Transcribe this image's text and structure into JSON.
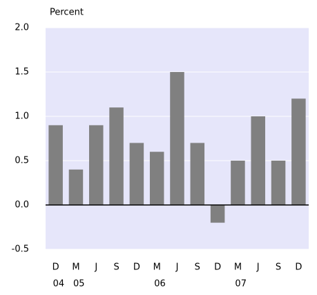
{
  "chart_data": {
    "type": "bar",
    "y_label": "Percent",
    "categories": [
      "D",
      "M",
      "J",
      "S",
      "D",
      "M",
      "J",
      "S",
      "D",
      "M",
      "J",
      "S",
      "D"
    ],
    "category_years": [
      "04",
      "05",
      null,
      null,
      null,
      "06",
      null,
      null,
      null,
      "07",
      null,
      null,
      null
    ],
    "values": [
      0.9,
      0.4,
      0.9,
      1.1,
      0.7,
      0.6,
      1.5,
      0.7,
      -0.2,
      0.5,
      1.0,
      0.5,
      1.2
    ],
    "color": "#808080",
    "ylim": [
      -0.5,
      2.0
    ],
    "yticks": [
      {
        "value": -0.5,
        "label": "-0.5"
      },
      {
        "value": 0,
        "label": "0.0"
      },
      {
        "value": 0.5,
        "label": "0.5"
      },
      {
        "value": 1,
        "label": "1.0"
      },
      {
        "value": 1.5,
        "label": "1.5"
      },
      {
        "value": 2,
        "label": "2.0"
      }
    ],
    "grid": true
  }
}
